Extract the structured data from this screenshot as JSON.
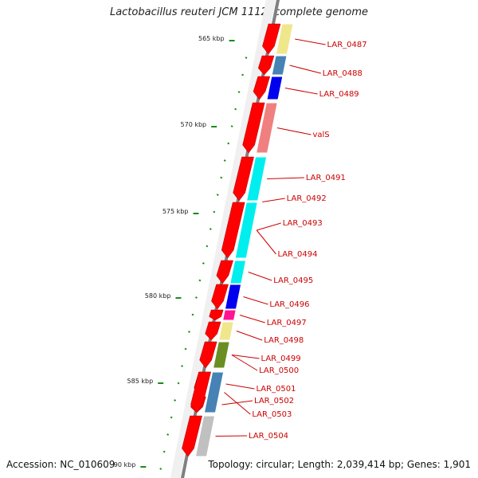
{
  "title": "Lactobacillus reuteri JCM 1112, complete genome",
  "footer": {
    "accession": "Accession: NC_010609",
    "topology": "Topology: circular; Length: 2,039,414 bp; Genes: 1,901"
  },
  "colors": {
    "gene_arrow": "#ff0000",
    "backbone": "#808080",
    "tick": "#1a8a1a",
    "label": "#cc0000"
  },
  "scale_labels": [
    "565 kbp",
    "570 kbp",
    "575 kbp",
    "580 kbp",
    "585 kbp",
    "90 kbp"
  ],
  "genes": [
    {
      "label": "LAR_0487",
      "cog_color": "#f0e68c"
    },
    {
      "label": "LAR_0488",
      "cog_color": "#4682b4"
    },
    {
      "label": "LAR_0489",
      "cog_color": "#0000ee"
    },
    {
      "label": "valS",
      "cog_color": "#f08080"
    },
    {
      "label": "LAR_0491",
      "cog_color": "#00eeee"
    },
    {
      "label": "LAR_0492",
      "cog_color": "#00eeee"
    },
    {
      "label": "LAR_0493",
      "cog_color": "#bdb76b"
    },
    {
      "label": "LAR_0494",
      "cog_color": "#00eeee"
    },
    {
      "label": "LAR_0495",
      "cog_color": "#00eeee"
    },
    {
      "label": "LAR_0496",
      "cog_color": "#0000ee"
    },
    {
      "label": "LAR_0497",
      "cog_color": "#ff1493"
    },
    {
      "label": "LAR_0498",
      "cog_color": "#f0e68c"
    },
    {
      "label": "LAR_0499",
      "cog_color": "#6b8e23"
    },
    {
      "label": "LAR_0500",
      "cog_color": "#6b8e23"
    },
    {
      "label": "LAR_0501",
      "cog_color": "#4682b4"
    },
    {
      "label": "LAR_0502",
      "cog_color": "#32cd32"
    },
    {
      "label": "LAR_0503",
      "cog_color": "#4682b4"
    },
    {
      "label": "LAR_0504",
      "cog_color": "#c0c0c0"
    }
  ]
}
